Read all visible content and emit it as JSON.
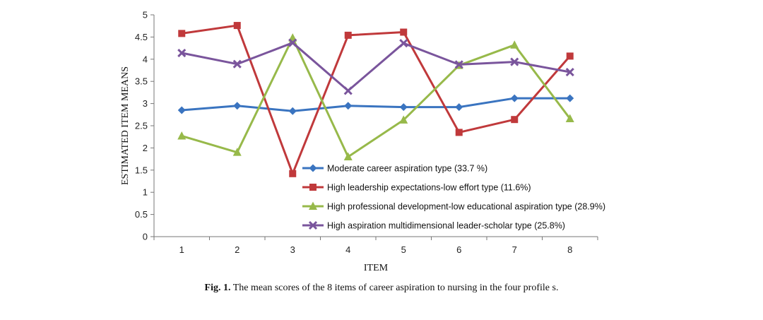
{
  "chart_data": {
    "type": "line",
    "xlabel": "ITEM",
    "ylabel": "ESTIMATED ITEM MEANS",
    "ylim": [
      0,
      5
    ],
    "yticks": [
      "0",
      "0.5",
      "1",
      "1.5",
      "2",
      "2.5",
      "3",
      "3.5",
      "4",
      "4.5",
      "5"
    ],
    "x": [
      "1",
      "2",
      "3",
      "4",
      "5",
      "6",
      "7",
      "8"
    ],
    "legend_position": "inside-bottom-center",
    "grid": false,
    "series": [
      {
        "name": "Moderate career aspiration type (33.7 %)",
        "color": "#3a74c0",
        "marker": "diamond",
        "values": [
          2.85,
          2.95,
          2.83,
          2.95,
          2.92,
          2.92,
          3.12,
          3.12
        ]
      },
      {
        "name": "High leadership expectations-low effort type (11.6%)",
        "color": "#c0393b",
        "marker": "square",
        "values": [
          4.58,
          4.76,
          1.42,
          4.54,
          4.61,
          2.35,
          2.64,
          4.07
        ]
      },
      {
        "name": "High professional development-low educational aspiration type (28.9%)",
        "color": "#97b94a",
        "marker": "triangle",
        "values": [
          2.27,
          1.9,
          4.48,
          1.8,
          2.63,
          3.86,
          4.32,
          2.66
        ]
      },
      {
        "name": "High aspiration multidimensional leader-scholar type (25.8%)",
        "color": "#7a559c",
        "marker": "x",
        "values": [
          4.14,
          3.89,
          4.37,
          3.29,
          4.36,
          3.88,
          3.94,
          3.71
        ]
      }
    ]
  },
  "caption": {
    "label": "Fig. 1.",
    "text": "The mean scores of the 8 items of career aspiration to nursing in the four profile s."
  }
}
